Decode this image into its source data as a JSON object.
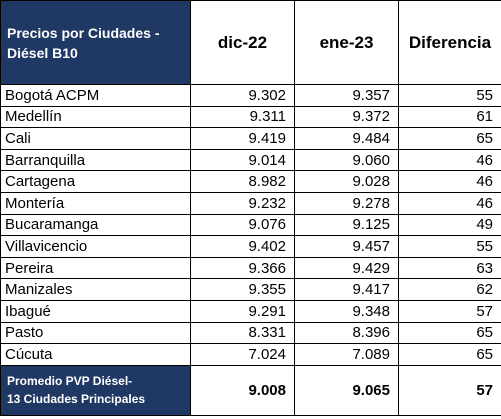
{
  "header": {
    "title_line1": "Precios por Ciudades -",
    "title_line2": "Diésel B10",
    "col1": "dic-22",
    "col2": "ene-23",
    "col3": "Diferencia"
  },
  "rows": [
    {
      "city": "Bogotá ACPM",
      "dic22": "9.302",
      "ene23": "9.357",
      "diff": "55"
    },
    {
      "city": "Medellín",
      "dic22": "9.311",
      "ene23": "9.372",
      "diff": "61"
    },
    {
      "city": "Cali",
      "dic22": "9.419",
      "ene23": "9.484",
      "diff": "65"
    },
    {
      "city": "Barranquilla",
      "dic22": "9.014",
      "ene23": "9.060",
      "diff": "46"
    },
    {
      "city": "Cartagena",
      "dic22": "8.982",
      "ene23": "9.028",
      "diff": "46"
    },
    {
      "city": "Montería",
      "dic22": "9.232",
      "ene23": "9.278",
      "diff": "46"
    },
    {
      "city": "Bucaramanga",
      "dic22": "9.076",
      "ene23": "9.125",
      "diff": "49"
    },
    {
      "city": "Villavicencio",
      "dic22": "9.402",
      "ene23": "9.457",
      "diff": "55"
    },
    {
      "city": "Pereira",
      "dic22": "9.366",
      "ene23": "9.429",
      "diff": "63"
    },
    {
      "city": "Manizales",
      "dic22": "9.355",
      "ene23": "9.417",
      "diff": "62"
    },
    {
      "city": "Ibagué",
      "dic22": "9.291",
      "ene23": "9.348",
      "diff": "57"
    },
    {
      "city": "Pasto",
      "dic22": "8.331",
      "ene23": "8.396",
      "diff": "65"
    },
    {
      "city": "Cúcuta",
      "dic22": "7.024",
      "ene23": "7.089",
      "diff": "65"
    }
  ],
  "footer": {
    "label_line1": "Promedio PVP Diésel-",
    "label_line2": "13 Ciudades Principales",
    "dic22": "9.008",
    "ene23": "9.065",
    "diff": "57"
  },
  "colors": {
    "header_fill": "#1f3864",
    "header_text": "#ffffff"
  }
}
